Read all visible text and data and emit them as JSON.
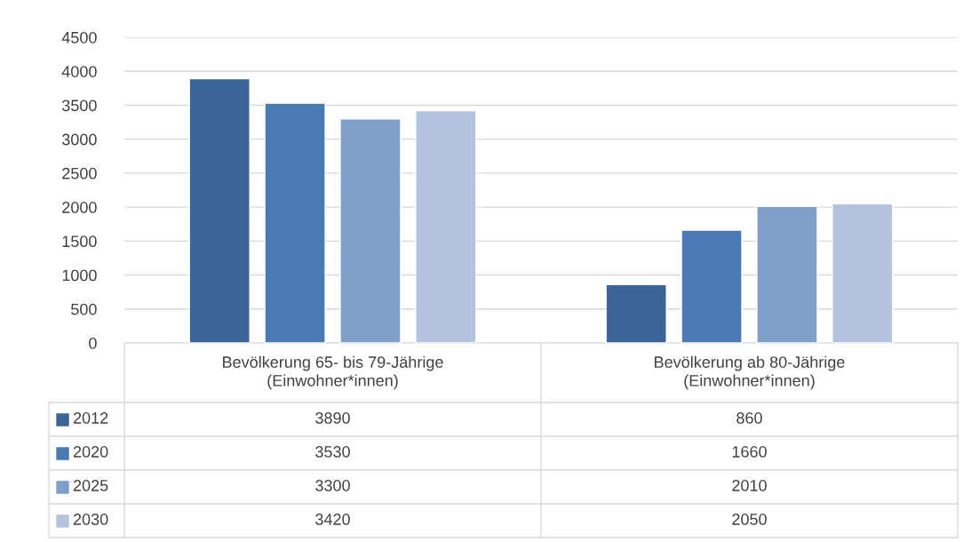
{
  "chart_data": {
    "type": "bar",
    "categories": [
      "Bevölkerung 65- bis 79-Jährige\n(Einwohner*innen)",
      "Bevölkerung ab 80-Jährige\n(Einwohner*innen)"
    ],
    "series": [
      {
        "name": "2012",
        "color": "#3c6496",
        "values": [
          3890,
          860
        ]
      },
      {
        "name": "2020",
        "color": "#4a7ab4",
        "values": [
          3530,
          1660
        ]
      },
      {
        "name": "2025",
        "color": "#7f9ec9",
        "values": [
          3300,
          2010
        ]
      },
      {
        "name": "2030",
        "color": "#b4c3de",
        "values": [
          3420,
          2050
        ]
      }
    ],
    "ylim": [
      0,
      4500
    ],
    "yticks": [
      0,
      500,
      1000,
      1500,
      2000,
      2500,
      3000,
      3500,
      4000,
      4500
    ],
    "grid": "y",
    "legend": "bottom left",
    "data_labels": true,
    "tick_labels": "y"
  }
}
